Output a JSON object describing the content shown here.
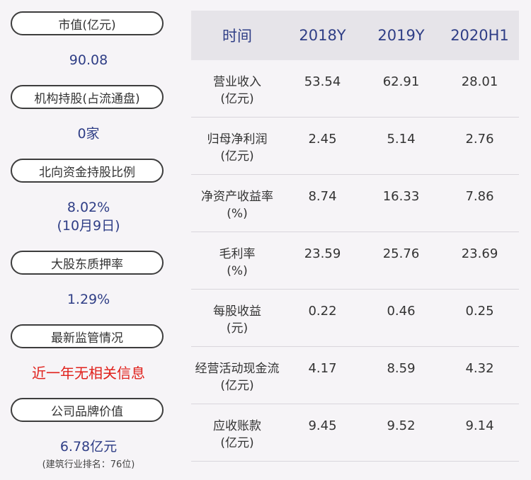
{
  "sidebar": {
    "items": [
      {
        "label": "市值(亿元)",
        "value": "90.08"
      },
      {
        "label": "机构持股(占流通盘)",
        "value": "0家"
      },
      {
        "label": "北向资金持股比例",
        "value": "8.02%",
        "value2": "(10月9日)"
      },
      {
        "label": "大股东质押率",
        "value": "1.29%"
      },
      {
        "label": "最新监管情况",
        "value": "近一年无相关信息"
      },
      {
        "label": "公司品牌价值",
        "value": "6.78亿元",
        "note": "(建筑行业排名：76位)"
      }
    ]
  },
  "table": {
    "headers": [
      "时间",
      "2018Y",
      "2019Y",
      "2020H1"
    ],
    "rows": [
      {
        "name": "营业收入",
        "unit": "(亿元)",
        "values": [
          "53.54",
          "62.91",
          "28.01"
        ]
      },
      {
        "name": "归母净利润",
        "unit": "(亿元)",
        "values": [
          "2.45",
          "5.14",
          "2.76"
        ]
      },
      {
        "name": "净资产收益率",
        "unit": "(%)",
        "values": [
          "8.74",
          "16.33",
          "7.86"
        ]
      },
      {
        "name": "毛利率",
        "unit": "(%)",
        "values": [
          "23.59",
          "25.76",
          "23.69"
        ]
      },
      {
        "name": "每股收益",
        "unit": "(元)",
        "values": [
          "0.22",
          "0.46",
          "0.25"
        ]
      },
      {
        "name": "经营活动现金流",
        "unit": "(亿元)",
        "values": [
          "4.17",
          "8.59",
          "4.32"
        ]
      },
      {
        "name": "应收账款",
        "unit": "(亿元)",
        "values": [
          "9.45",
          "9.52",
          "9.14"
        ]
      }
    ]
  },
  "colors": {
    "value_blue": "#2f3e86",
    "alert_red": "#e0201b",
    "header_bg": "#e6e4e9",
    "page_bg": "#f6f4f7"
  }
}
